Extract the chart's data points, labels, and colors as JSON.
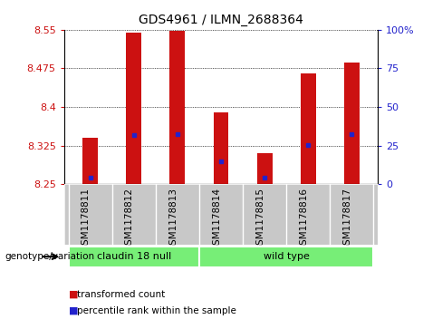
{
  "title": "GDS4961 / ILMN_2688364",
  "samples": [
    "GSM1178811",
    "GSM1178812",
    "GSM1178813",
    "GSM1178814",
    "GSM1178815",
    "GSM1178816",
    "GSM1178817"
  ],
  "bar_tops": [
    8.34,
    8.545,
    8.548,
    8.39,
    8.31,
    8.465,
    8.486
  ],
  "blue_markers": [
    8.262,
    8.345,
    8.347,
    8.295,
    8.263,
    8.326,
    8.348
  ],
  "ymin": 8.25,
  "ymax": 8.55,
  "yticks_left": [
    8.25,
    8.325,
    8.4,
    8.475,
    8.55
  ],
  "right_pct_vals": [
    0,
    25,
    50,
    75,
    100
  ],
  "yticks_right_labels": [
    "0",
    "25",
    "50",
    "75",
    "100%"
  ],
  "bar_color": "#cc1111",
  "blue_color": "#2222cc",
  "bg_color": "#ffffff",
  "tick_area_bg": "#c8c8c8",
  "group1_label": "claudin 18 null",
  "group2_label": "wild type",
  "group_color": "#77ee77",
  "group1_samples": [
    0,
    1,
    2
  ],
  "group2_samples": [
    3,
    4,
    5,
    6
  ],
  "genotype_label": "genotype/variation",
  "legend_red": "transformed count",
  "legend_blue": "percentile rank within the sample",
  "bar_width": 0.35
}
